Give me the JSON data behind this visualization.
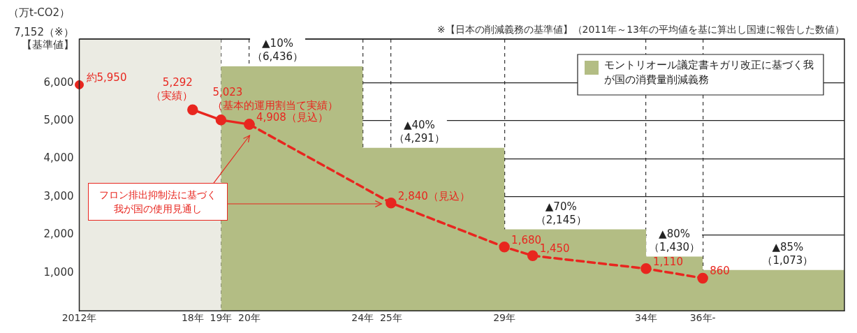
{
  "chart_data": {
    "type": "line",
    "ylabel": "（万t-CO2）",
    "annotations": [
      "※【日本の削減義務の基準値】（2011年～13年の平均値を基に算出し国連に報告した数値）"
    ],
    "categories": [
      "2012年",
      null,
      null,
      null,
      "18年",
      "19年",
      "20年",
      null,
      null,
      null,
      "24年",
      "25年",
      null,
      null,
      null,
      "29年",
      null,
      null,
      null,
      null,
      "34年",
      null,
      "36年-",
      null,
      null,
      null,
      null,
      null
    ],
    "ylim": [
      0,
      7152
    ],
    "yticks": [
      {
        "value": 1000,
        "label": "1,000"
      },
      {
        "value": 2000,
        "label": "2,000"
      },
      {
        "value": 3000,
        "label": "3,000"
      },
      {
        "value": 4000,
        "label": "4,000"
      },
      {
        "value": 5000,
        "label": "5,000"
      },
      {
        "value": 6000,
        "label": "6,000"
      },
      {
        "value": 7152,
        "label": "7,152（※）【基準値】"
      }
    ],
    "bands": [
      {
        "axis": "x",
        "from": "2012年",
        "to": "19年",
        "color": "#ebebe3"
      }
    ],
    "grid": true,
    "legend": "top right",
    "marker": "circle",
    "series": [
      {
        "type": "area",
        "marker": "none",
        "name": "モントリオール議定書キガリ改正に基づく我が国の消費量削減義務",
        "color": "#b3bd84",
        "values": [
          null,
          null,
          null,
          null,
          null,
          6436,
          6436,
          6436,
          6436,
          6436,
          4291,
          4291,
          4291,
          4291,
          4291,
          2145,
          2145,
          2145,
          2145,
          2145,
          1430,
          1430,
          1073,
          1073,
          1073,
          1073,
          1073,
          1073
        ],
        "value_labels": [
          null,
          null,
          null,
          null,
          null,
          null,
          null,
          "▲10%\n（6,436）",
          null,
          null,
          null,
          null,
          "▲40%\n（4,291）",
          null,
          null,
          null,
          null,
          "▲70%\n（2,145）",
          null,
          null,
          null,
          "▲80%\n（1,430）",
          null,
          null,
          null,
          "▲85%\n（1,073）",
          null,
          null
        ]
      },
      {
        "type": "scatter",
        "color": "#e8261f",
        "values": [
          5950,
          null,
          null,
          null,
          null,
          null,
          null,
          null,
          null,
          null,
          null,
          null,
          null,
          null,
          null,
          null,
          null,
          null,
          null,
          null,
          null,
          null,
          null,
          null,
          null,
          null,
          null,
          null
        ],
        "value_labels": [
          "約5,950",
          null,
          null,
          null,
          null,
          null,
          null,
          null,
          null,
          null,
          null,
          null,
          null,
          null,
          null,
          null,
          null,
          null,
          null,
          null,
          null,
          null,
          null,
          null,
          null,
          null,
          null,
          null
        ]
      },
      {
        "color": "#e8261f",
        "line_style": "solid",
        "values": [
          null,
          null,
          null,
          null,
          5292,
          5023,
          4908,
          null,
          null,
          null,
          null,
          null,
          null,
          null,
          null,
          null,
          null,
          null,
          null,
          null,
          null,
          null,
          null,
          null,
          null,
          null,
          null,
          null
        ],
        "value_labels": [
          null,
          null,
          null,
          null,
          "5,292\n（実績）",
          "5,023\n（基本的運用割当て実績）",
          null,
          null,
          null,
          null,
          null,
          null,
          null,
          null,
          null,
          null,
          null,
          null,
          null,
          null,
          null,
          null,
          null,
          null,
          null,
          null,
          null,
          null
        ]
      },
      {
        "name": "フロン排出抑制法に基づく我が国の使用見通し",
        "color": "#e8261f",
        "line_style": "dashed",
        "values": [
          null,
          null,
          null,
          null,
          null,
          null,
          4908,
          null,
          null,
          null,
          null,
          2840,
          null,
          null,
          null,
          1680,
          1450,
          null,
          null,
          null,
          1110,
          null,
          860,
          null,
          null,
          null,
          null,
          null
        ],
        "value_labels": [
          null,
          null,
          null,
          null,
          null,
          null,
          "4,908（見込）",
          null,
          null,
          null,
          null,
          "2,840（見込）",
          null,
          null,
          null,
          "1,680",
          "1,450",
          null,
          null,
          null,
          "1,110",
          null,
          "860",
          null,
          null,
          null,
          null,
          null
        ]
      }
    ]
  }
}
